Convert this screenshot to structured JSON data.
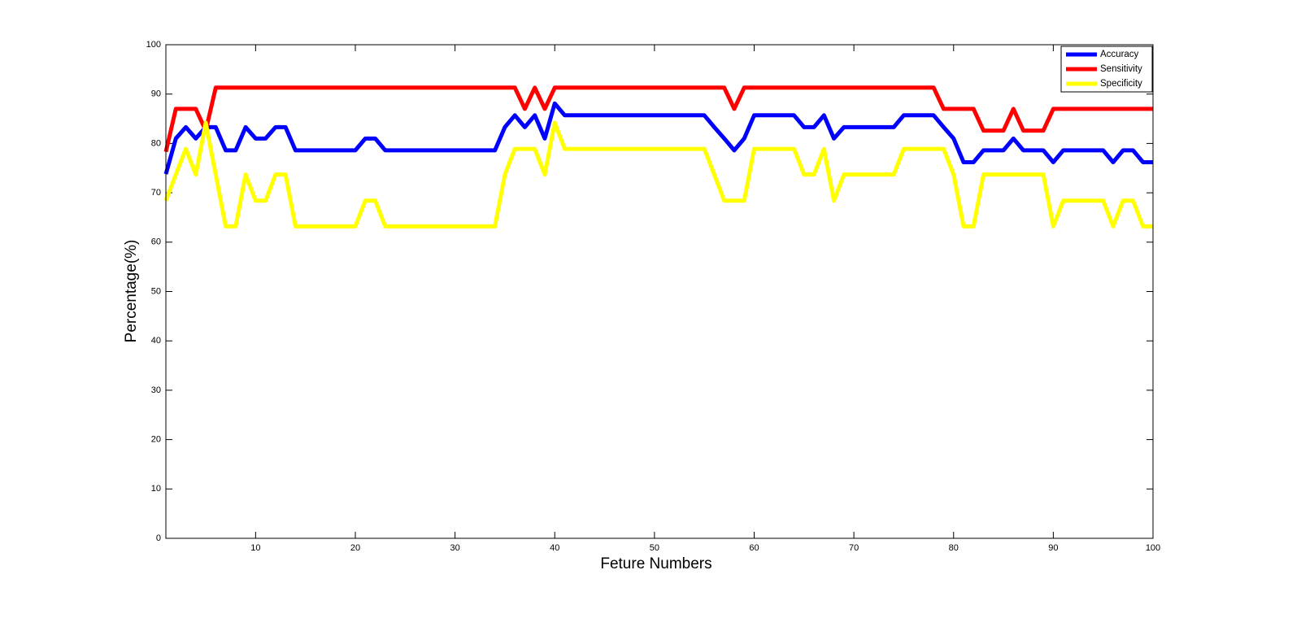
{
  "chart_data": {
    "type": "line",
    "x_label": "Feture Numbers",
    "y_label": "Percentage(%)",
    "x": [
      1,
      2,
      3,
      4,
      5,
      6,
      7,
      8,
      9,
      10,
      11,
      12,
      13,
      14,
      15,
      16,
      17,
      18,
      19,
      20,
      21,
      22,
      23,
      24,
      25,
      26,
      27,
      28,
      29,
      30,
      31,
      32,
      33,
      34,
      35,
      36,
      37,
      38,
      39,
      40,
      41,
      42,
      43,
      44,
      45,
      46,
      47,
      48,
      49,
      50,
      51,
      52,
      53,
      54,
      55,
      56,
      57,
      58,
      59,
      60,
      61,
      62,
      63,
      64,
      65,
      66,
      67,
      68,
      69,
      70,
      71,
      72,
      73,
      74,
      75,
      76,
      77,
      78,
      79,
      80,
      81,
      82,
      83,
      84,
      85,
      86,
      87,
      88,
      89,
      90,
      91,
      92,
      93,
      94,
      95,
      96,
      97,
      98,
      99,
      100
    ],
    "series": [
      {
        "name": "Accuracy",
        "color": "#0000ff",
        "values": [
          73.8,
          81.0,
          83.3,
          81.0,
          83.3,
          83.3,
          78.6,
          78.6,
          83.3,
          81.0,
          81.0,
          83.3,
          83.3,
          78.6,
          78.6,
          78.6,
          78.6,
          78.6,
          78.6,
          78.6,
          81.0,
          81.0,
          78.6,
          78.6,
          78.6,
          78.6,
          78.6,
          78.6,
          78.6,
          78.6,
          78.6,
          78.6,
          78.6,
          78.6,
          83.3,
          85.7,
          83.3,
          85.7,
          81.0,
          88.1,
          85.7,
          85.7,
          85.7,
          85.7,
          85.7,
          85.7,
          85.7,
          85.7,
          85.7,
          85.7,
          85.7,
          85.7,
          85.7,
          85.7,
          85.7,
          83.3,
          81.0,
          78.6,
          81.0,
          85.7,
          85.7,
          85.7,
          85.7,
          85.7,
          83.3,
          83.3,
          85.7,
          81.0,
          83.3,
          83.3,
          83.3,
          83.3,
          83.3,
          83.3,
          85.7,
          85.7,
          85.7,
          85.7,
          83.3,
          81.0,
          76.2,
          76.2,
          78.6,
          78.6,
          78.6,
          81.0,
          78.6,
          78.6,
          78.6,
          76.2,
          78.6,
          78.6,
          78.6,
          78.6,
          78.6,
          76.2,
          78.6,
          78.6,
          76.2,
          76.2
        ]
      },
      {
        "name": "Sensitivity",
        "color": "#ff0000",
        "values": [
          78.3,
          87.0,
          87.0,
          87.0,
          82.6,
          91.3,
          91.3,
          91.3,
          91.3,
          91.3,
          91.3,
          91.3,
          91.3,
          91.3,
          91.3,
          91.3,
          91.3,
          91.3,
          91.3,
          91.3,
          91.3,
          91.3,
          91.3,
          91.3,
          91.3,
          91.3,
          91.3,
          91.3,
          91.3,
          91.3,
          91.3,
          91.3,
          91.3,
          91.3,
          91.3,
          91.3,
          87.0,
          91.3,
          87.0,
          91.3,
          91.3,
          91.3,
          91.3,
          91.3,
          91.3,
          91.3,
          91.3,
          91.3,
          91.3,
          91.3,
          91.3,
          91.3,
          91.3,
          91.3,
          91.3,
          91.3,
          91.3,
          87.0,
          91.3,
          91.3,
          91.3,
          91.3,
          91.3,
          91.3,
          91.3,
          91.3,
          91.3,
          91.3,
          91.3,
          91.3,
          91.3,
          91.3,
          91.3,
          91.3,
          91.3,
          91.3,
          91.3,
          91.3,
          87.0,
          87.0,
          87.0,
          87.0,
          82.6,
          82.6,
          82.6,
          87.0,
          82.6,
          82.6,
          82.6,
          87.0,
          87.0,
          87.0,
          87.0,
          87.0,
          87.0,
          87.0,
          87.0,
          87.0,
          87.0,
          87.0
        ]
      },
      {
        "name": "Specificity",
        "color": "#ffff00",
        "values": [
          68.4,
          73.7,
          78.9,
          73.7,
          84.2,
          73.7,
          63.2,
          63.2,
          73.7,
          68.4,
          68.4,
          73.7,
          73.7,
          63.2,
          63.2,
          63.2,
          63.2,
          63.2,
          63.2,
          63.2,
          68.4,
          68.4,
          63.2,
          63.2,
          63.2,
          63.2,
          63.2,
          63.2,
          63.2,
          63.2,
          63.2,
          63.2,
          63.2,
          63.2,
          73.7,
          78.9,
          78.9,
          78.9,
          73.7,
          84.2,
          78.9,
          78.9,
          78.9,
          78.9,
          78.9,
          78.9,
          78.9,
          78.9,
          78.9,
          78.9,
          78.9,
          78.9,
          78.9,
          78.9,
          78.9,
          73.7,
          68.4,
          68.4,
          68.4,
          78.9,
          78.9,
          78.9,
          78.9,
          78.9,
          73.7,
          73.7,
          78.9,
          68.4,
          73.7,
          73.7,
          73.7,
          73.7,
          73.7,
          73.7,
          78.9,
          78.9,
          78.9,
          78.9,
          78.9,
          73.7,
          63.2,
          63.2,
          73.7,
          73.7,
          73.7,
          73.7,
          73.7,
          73.7,
          73.7,
          63.2,
          68.4,
          68.4,
          68.4,
          68.4,
          68.4,
          63.2,
          68.4,
          68.4,
          63.2,
          63.2
        ]
      }
    ],
    "xlim": [
      1,
      100
    ],
    "xticks": [
      10,
      20,
      30,
      40,
      50,
      60,
      70,
      80,
      90,
      100
    ],
    "ylim": [
      0,
      100
    ],
    "yticks": [
      0,
      10,
      20,
      30,
      40,
      50,
      60,
      70,
      80,
      90,
      100
    ],
    "legend": "upper right"
  }
}
